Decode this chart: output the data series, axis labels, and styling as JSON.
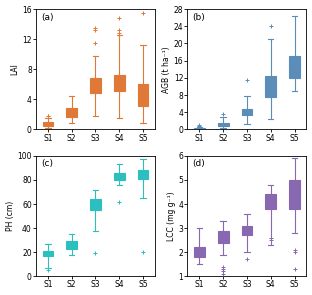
{
  "panels": [
    "a",
    "b",
    "c",
    "d"
  ],
  "categories": [
    "S1",
    "S2",
    "S3",
    "S4",
    "S5"
  ],
  "colors": {
    "a": "#E07838",
    "b": "#5B8DB8",
    "c": "#2BBFBF",
    "d": "#8868B0"
  },
  "ylabels": {
    "a": "LAI",
    "b": "AGB (t ha⁻¹)",
    "c": "PH (cm)",
    "d": "LCC (mg g⁻¹)"
  },
  "ylims": {
    "a": [
      0,
      16
    ],
    "b": [
      0,
      28
    ],
    "c": [
      0,
      100
    ],
    "d": [
      1,
      6
    ]
  },
  "yticks": {
    "a": [
      0,
      4,
      8,
      12,
      16
    ],
    "b": [
      0,
      4,
      8,
      12,
      16,
      20,
      24,
      28
    ],
    "c": [
      0,
      20,
      40,
      60,
      80,
      100
    ],
    "d": [
      1,
      2,
      3,
      4,
      5,
      6
    ]
  },
  "box_data": {
    "a": {
      "S1": {
        "whislo": 0.15,
        "q1": 0.5,
        "med": 0.7,
        "q3": 0.95,
        "whishi": 1.5,
        "fliers_above": [
          1.75,
          1.85
        ],
        "fliers_below": []
      },
      "S2": {
        "whislo": 0.9,
        "q1": 1.7,
        "med": 2.1,
        "q3": 2.9,
        "whishi": 4.5,
        "fliers_above": [],
        "fliers_below": []
      },
      "S3": {
        "whislo": 1.8,
        "q1": 4.8,
        "med": 5.5,
        "q3": 6.8,
        "whishi": 9.8,
        "fliers_above": [
          11.5,
          13.2,
          13.5
        ],
        "fliers_below": []
      },
      "S4": {
        "whislo": 1.5,
        "q1": 5.1,
        "med": 5.9,
        "q3": 7.3,
        "whishi": 12.5,
        "fliers_above": [
          12.8,
          13.2,
          14.8
        ],
        "fliers_below": []
      },
      "S5": {
        "whislo": 0.8,
        "q1": 3.1,
        "med": 4.5,
        "q3": 6.1,
        "whishi": 11.2,
        "fliers_above": [
          15.5
        ],
        "fliers_below": []
      }
    },
    "b": {
      "S1": {
        "whislo": 0.02,
        "q1": 0.08,
        "med": 0.15,
        "q3": 0.35,
        "whishi": 0.65,
        "fliers_above": [
          0.85,
          1.0
        ],
        "fliers_below": []
      },
      "S2": {
        "whislo": 0.3,
        "q1": 0.75,
        "med": 1.0,
        "q3": 1.5,
        "whishi": 3.0,
        "fliers_above": [
          3.5
        ],
        "fliers_below": []
      },
      "S3": {
        "whislo": 1.2,
        "q1": 3.3,
        "med": 3.9,
        "q3": 4.8,
        "whishi": 7.8,
        "fliers_above": [
          11.5
        ],
        "fliers_below": []
      },
      "S4": {
        "whislo": 2.5,
        "q1": 7.5,
        "med": 9.5,
        "q3": 12.5,
        "whishi": 21.0,
        "fliers_above": [
          24.0
        ],
        "fliers_below": []
      },
      "S5": {
        "whislo": 9.0,
        "q1": 12.0,
        "med": 14.5,
        "q3": 17.0,
        "whishi": 26.5,
        "fliers_above": [],
        "fliers_below": []
      }
    },
    "c": {
      "S1": {
        "whislo": 7.0,
        "q1": 16.5,
        "med": 19.0,
        "q3": 21.0,
        "whishi": 26.5,
        "fliers_above": [],
        "fliers_below": [
          5.0
        ]
      },
      "S2": {
        "whislo": 18.0,
        "q1": 23.0,
        "med": 25.5,
        "q3": 29.0,
        "whishi": 35.0,
        "fliers_above": [],
        "fliers_below": []
      },
      "S3": {
        "whislo": 38.0,
        "q1": 55.0,
        "med": 60.0,
        "q3": 64.0,
        "whishi": 72.0,
        "fliers_above": [],
        "fliers_below": [
          19.0
        ]
      },
      "S4": {
        "whislo": 76.0,
        "q1": 80.0,
        "med": 83.0,
        "q3": 86.0,
        "whishi": 93.0,
        "fliers_above": [],
        "fliers_below": [
          62.0
        ]
      },
      "S5": {
        "whislo": 65.0,
        "q1": 81.0,
        "med": 85.5,
        "q3": 88.0,
        "whishi": 97.0,
        "fliers_above": [],
        "fliers_below": [
          20.0
        ]
      }
    },
    "d": {
      "S1": {
        "whislo": 1.5,
        "q1": 1.8,
        "med": 2.0,
        "q3": 2.2,
        "whishi": 3.0,
        "fliers_above": [],
        "fliers_below": []
      },
      "S2": {
        "whislo": 1.9,
        "q1": 2.4,
        "med": 2.6,
        "q3": 2.9,
        "whishi": 3.3,
        "fliers_above": [],
        "fliers_below": [
          1.1,
          1.2,
          1.3,
          1.4
        ]
      },
      "S3": {
        "whislo": 2.0,
        "q1": 2.7,
        "med": 2.9,
        "q3": 3.1,
        "whishi": 3.6,
        "fliers_above": [],
        "fliers_below": [
          1.7
        ]
      },
      "S4": {
        "whislo": 2.3,
        "q1": 3.8,
        "med": 4.1,
        "q3": 4.4,
        "whishi": 4.8,
        "fliers_above": [],
        "fliers_below": [
          2.5,
          2.6
        ]
      },
      "S5": {
        "whislo": 2.8,
        "q1": 3.8,
        "med": 4.5,
        "q3": 5.0,
        "whishi": 5.9,
        "fliers_above": [],
        "fliers_below": [
          1.3,
          2.0,
          2.1
        ]
      }
    }
  },
  "background_color": "#ffffff",
  "fig_facecolor": "#ffffff"
}
